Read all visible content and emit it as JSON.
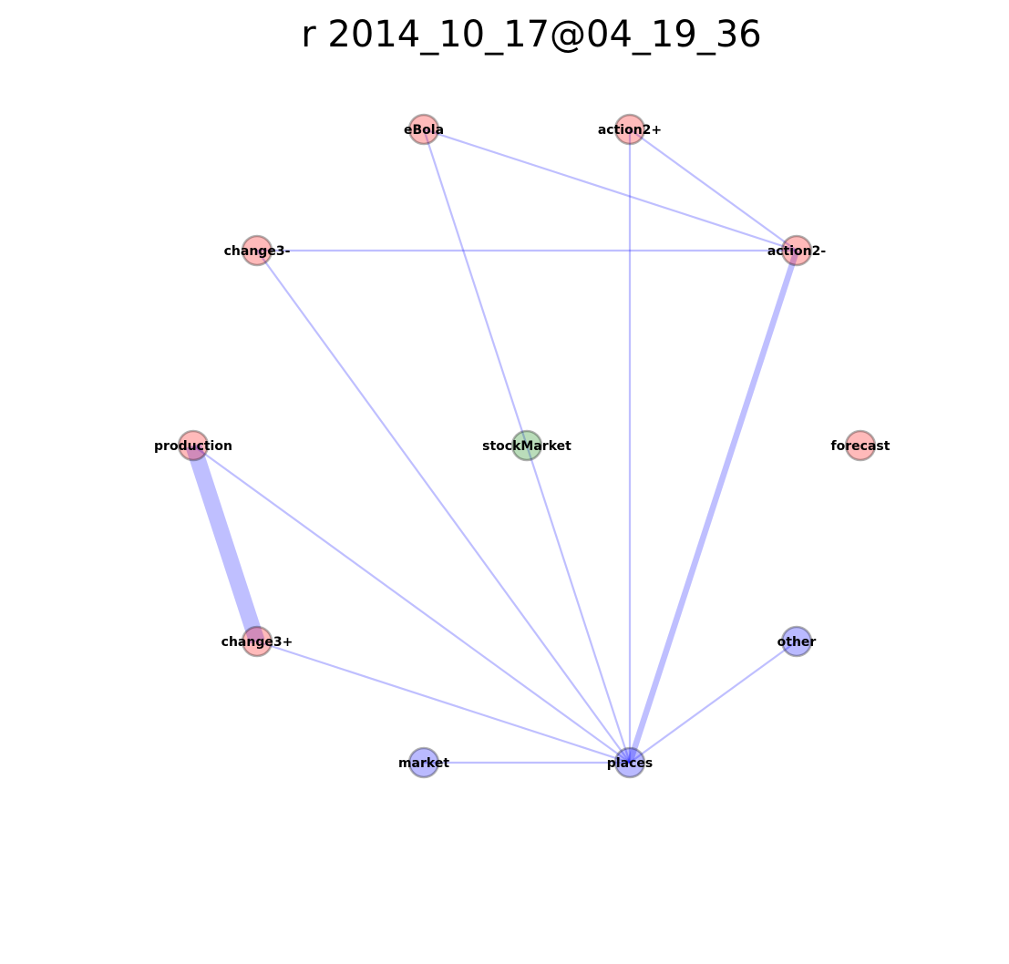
{
  "title": "r 2014_10_17@04_19_36",
  "colors": {
    "red_group": "#ff0000",
    "green_group": "#008000",
    "blue_group": "#0000ff",
    "edge": "#0000ff"
  },
  "nodes": [
    {
      "id": "eBola",
      "label": "eBola",
      "group": "red_group"
    },
    {
      "id": "action2+",
      "label": "action2+",
      "group": "red_group"
    },
    {
      "id": "change3-",
      "label": "change3-",
      "group": "red_group"
    },
    {
      "id": "action2-",
      "label": "action2-",
      "group": "red_group"
    },
    {
      "id": "production",
      "label": "production",
      "group": "red_group"
    },
    {
      "id": "stockMarket",
      "label": "stockMarket",
      "group": "green_group"
    },
    {
      "id": "forecast",
      "label": "forecast",
      "group": "red_group"
    },
    {
      "id": "change3+",
      "label": "change3+",
      "group": "red_group"
    },
    {
      "id": "other",
      "label": "other",
      "group": "blue_group"
    },
    {
      "id": "market",
      "label": "market",
      "group": "blue_group"
    },
    {
      "id": "places",
      "label": "places",
      "group": "blue_group"
    }
  ],
  "edges": [
    {
      "source": "eBola",
      "target": "action2-",
      "weight": 1
    },
    {
      "source": "eBola",
      "target": "stockMarket",
      "weight": 1
    },
    {
      "source": "action2+",
      "target": "action2-",
      "weight": 1
    },
    {
      "source": "action2+",
      "target": "places",
      "weight": 1
    },
    {
      "source": "change3-",
      "target": "action2-",
      "weight": 1
    },
    {
      "source": "change3-",
      "target": "places",
      "weight": 1
    },
    {
      "source": "action2-",
      "target": "places",
      "weight": 3
    },
    {
      "source": "production",
      "target": "change3+",
      "weight": 8
    },
    {
      "source": "production",
      "target": "places",
      "weight": 1
    },
    {
      "source": "stockMarket",
      "target": "places",
      "weight": 1
    },
    {
      "source": "change3+",
      "target": "places",
      "weight": 1
    },
    {
      "source": "other",
      "target": "places",
      "weight": 1
    },
    {
      "source": "market",
      "target": "places",
      "weight": 1
    }
  ]
}
